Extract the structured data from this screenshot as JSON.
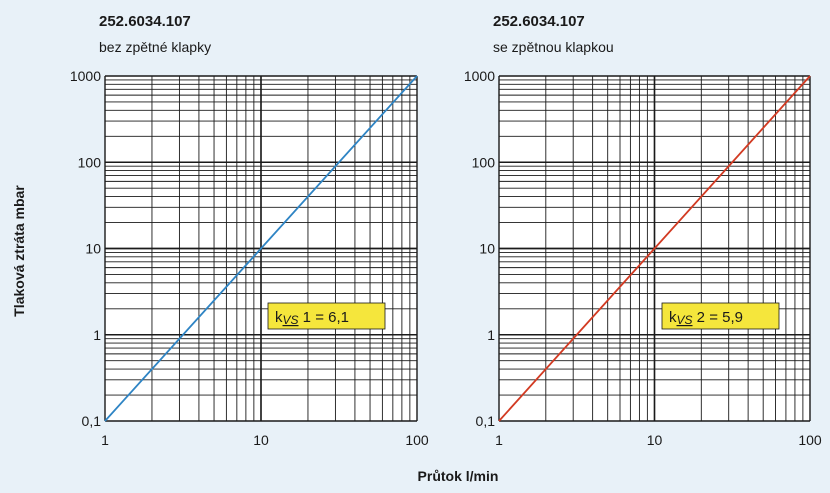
{
  "ylabel": "Tlaková ztráta  mbar",
  "xlabel": "Průtok  l/min",
  "chart_data": [
    {
      "type": "line",
      "title": "252.6034.107",
      "subtitle": "bez zpětné klapky",
      "xscale": "log",
      "yscale": "log",
      "xlim": [
        1,
        100
      ],
      "ylim": [
        0.1,
        1000
      ],
      "xticks": [
        "1",
        "10",
        "100"
      ],
      "yticks": [
        "0,1",
        "1",
        "10",
        "100",
        "1000"
      ],
      "grid": true,
      "series": [
        {
          "x": [
            1,
            100
          ],
          "y": [
            0.1,
            1000
          ],
          "color": "#2e84c4"
        }
      ],
      "annotation": {
        "k": "k",
        "sub": "VS",
        "rest": " 1 = 6,1"
      }
    },
    {
      "type": "line",
      "title": "252.6034.107",
      "subtitle": "se zpětnou klapkou",
      "xscale": "log",
      "yscale": "log",
      "xlim": [
        1,
        100
      ],
      "ylim": [
        0.1,
        1000
      ],
      "xticks": [
        "1",
        "10",
        "100"
      ],
      "yticks": [
        "0,1",
        "1",
        "10",
        "100",
        "1000"
      ],
      "grid": true,
      "series": [
        {
          "x": [
            1,
            100
          ],
          "y": [
            0.1,
            1000
          ],
          "color": "#d23a22"
        }
      ],
      "annotation": {
        "k": "k",
        "sub": "VS",
        "rest": " 2 = 5,9"
      }
    }
  ],
  "colors": {
    "background": "#e8f1f8",
    "plot_bg": "#ffffff",
    "grid": "#1a1a1a",
    "annotation_bg": "#f5e63c"
  }
}
